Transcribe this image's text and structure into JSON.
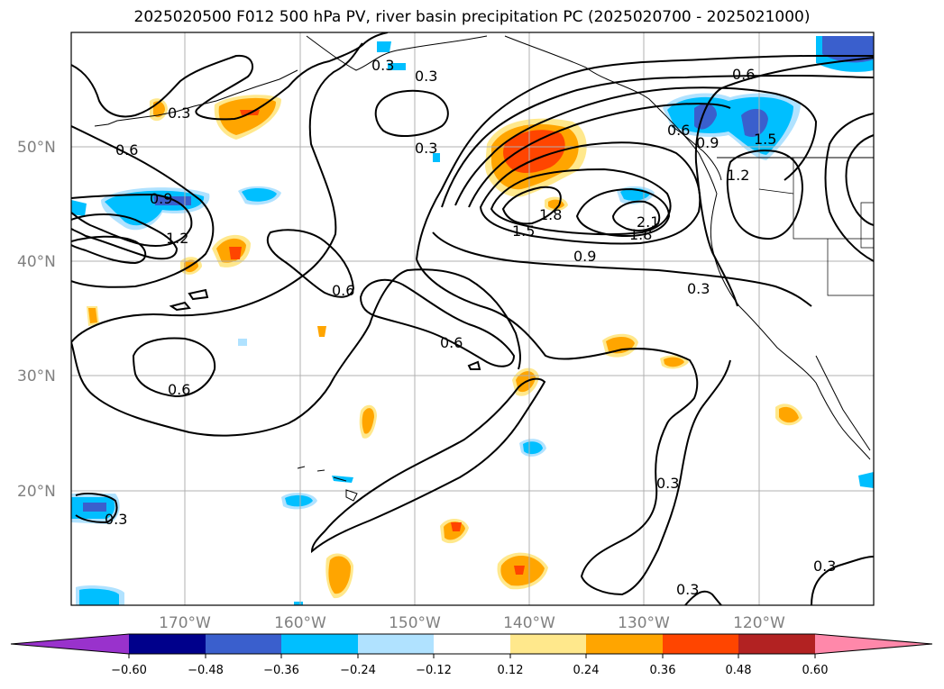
{
  "title": "2025020500 F012 500 hPa PV, river basin precipitation PC (2025020700 - 2025021000)",
  "map": {
    "lat_labels": [
      "50°N",
      "40°N",
      "30°N",
      "20°N"
    ],
    "lon_labels": [
      "170°W",
      "160°W",
      "150°W",
      "140°W",
      "130°W",
      "120°W"
    ],
    "contour_labels": [
      "0.3",
      "0.6",
      "0.9",
      "1.2",
      "0.3",
      "0.3",
      "0.6",
      "0.6",
      "0.6",
      "0.6",
      "0.9",
      "1.5",
      "1.8",
      "1.8",
      "2.1",
      "1.5",
      "1.2",
      "0.9",
      "0.6",
      "0.3",
      "0.3",
      "0.3",
      "0.3",
      "0.3",
      "0.3"
    ],
    "grid": true
  },
  "colorbar": {
    "ticks": [
      "−0.60",
      "−0.48",
      "−0.36",
      "−0.24",
      "−0.12",
      "0.12",
      "0.24",
      "0.36",
      "0.48",
      "0.60"
    ],
    "colors": [
      "#9932CC",
      "#00008B",
      "#3A5FCD",
      "#00BFFF",
      "#B0E2FF",
      "#FFFFFF",
      "#FFE88C",
      "#FFA500",
      "#FF4500",
      "#B22222",
      "#FF88AA"
    ],
    "extend": "both"
  },
  "shading_colors": {
    "dark_blue": "#3A5FCD",
    "blue": "#00BFFF",
    "light_blue": "#B0E2FF",
    "yellow": "#FFE88C",
    "orange": "#FFA500",
    "red_orange": "#FF4500"
  }
}
